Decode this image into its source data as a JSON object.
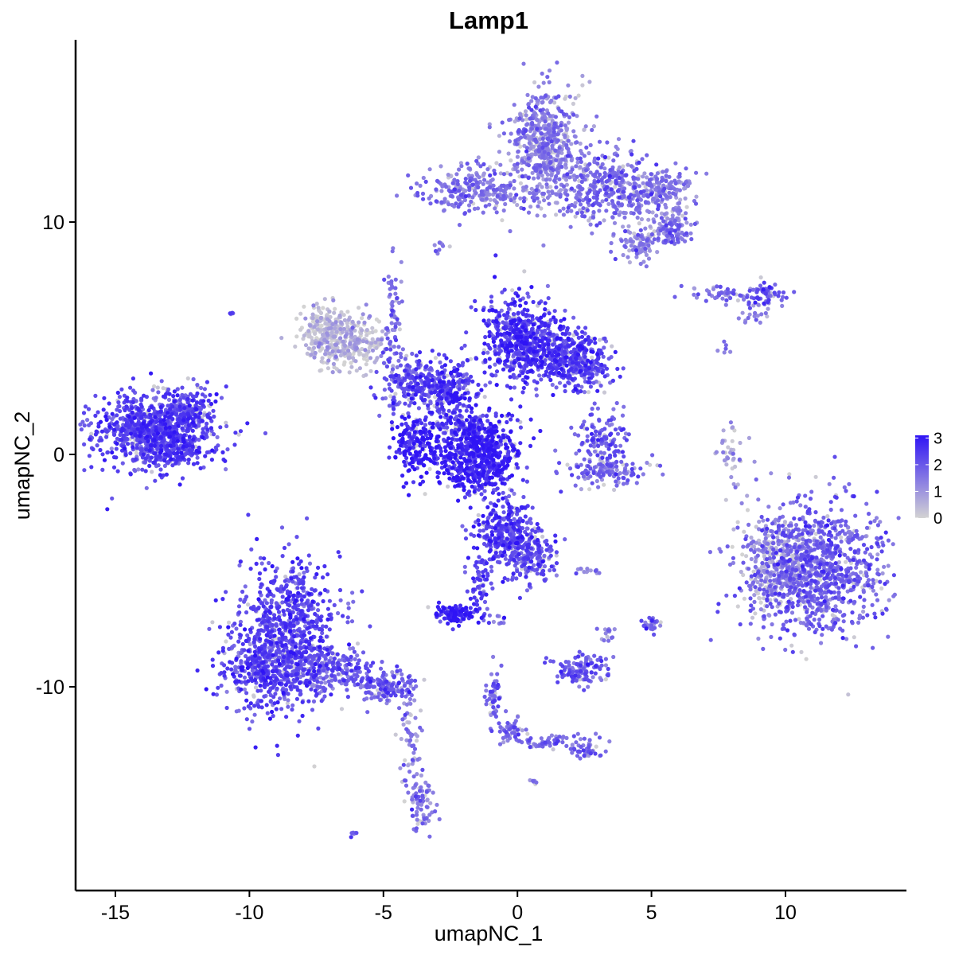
{
  "chart_data": {
    "type": "scatter",
    "title": "Lamp1",
    "xlabel": "umapNC_1",
    "ylabel": "umapNC_2",
    "xlim": [
      -16.5,
      14.5
    ],
    "ylim": [
      -18.5,
      17.6
    ],
    "x_ticks": [
      -15,
      -10,
      -5,
      0,
      5,
      10
    ],
    "x_tick_labels": [
      "-15",
      "-10",
      "-5",
      "0",
      "5",
      "10"
    ],
    "y_ticks": [
      -10,
      0,
      10
    ],
    "y_tick_labels": [
      "-10",
      "0",
      "10"
    ],
    "grid": false,
    "color_scale": {
      "low": "#d3d3d3",
      "high": "#2f14f5",
      "min": 0,
      "max": 3.1,
      "legend_ticks": [
        0,
        1,
        2,
        3
      ],
      "legend_labels": [
        "0",
        "1",
        "2",
        "3"
      ],
      "legend_position": "right"
    },
    "clusters": [
      {
        "cx": -13.6,
        "cy": 1.0,
        "sx": 1.1,
        "sy": 0.8,
        "n": 900,
        "expr": 2.3
      },
      {
        "cx": -12.3,
        "cy": 1.9,
        "sx": 0.5,
        "sy": 0.5,
        "n": 120,
        "expr": 2.2
      },
      {
        "cx": -12.5,
        "cy": 0.2,
        "sx": 0.5,
        "sy": 0.3,
        "n": 80,
        "expr": 2.4
      },
      {
        "cx": -10.6,
        "cy": 6.1,
        "sx": 0.06,
        "sy": 0.06,
        "n": 4,
        "expr": 2.0
      },
      {
        "cx": -8.6,
        "cy": -7.8,
        "sx": 1.0,
        "sy": 1.6,
        "n": 800,
        "expr": 2.2
      },
      {
        "cx": -9.4,
        "cy": -9.2,
        "sx": 0.8,
        "sy": 0.7,
        "n": 300,
        "expr": 2.2
      },
      {
        "cx": -6.8,
        "cy": -9.3,
        "sx": 0.9,
        "sy": 0.5,
        "n": 200,
        "expr": 1.9
      },
      {
        "cx": -4.9,
        "cy": -10.0,
        "sx": 0.6,
        "sy": 0.35,
        "n": 120,
        "expr": 1.9
      },
      {
        "cx": -4.0,
        "cy": -12.2,
        "sx": 0.2,
        "sy": 1.0,
        "n": 60,
        "expr": 1.4
      },
      {
        "cx": -3.6,
        "cy": -14.9,
        "sx": 0.25,
        "sy": 0.6,
        "n": 80,
        "expr": 1.5
      },
      {
        "cx": -6.1,
        "cy": -16.3,
        "sx": 0.1,
        "sy": 0.06,
        "n": 6,
        "expr": 2.0
      },
      {
        "cx": -1.5,
        "cy": 0.1,
        "sx": 0.8,
        "sy": 0.9,
        "n": 700,
        "expr": 2.7
      },
      {
        "cx": -3.8,
        "cy": 0.4,
        "sx": 0.5,
        "sy": 0.7,
        "n": 200,
        "expr": 2.8
      },
      {
        "cx": -2.7,
        "cy": 3.0,
        "sx": 0.6,
        "sy": 0.6,
        "n": 250,
        "expr": 2.3
      },
      {
        "cx": -4.2,
        "cy": 3.2,
        "sx": 0.5,
        "sy": 0.6,
        "n": 150,
        "expr": 2.1
      },
      {
        "cx": -6.4,
        "cy": 4.9,
        "sx": 0.8,
        "sy": 0.6,
        "n": 350,
        "expr": 0.5
      },
      {
        "cx": -7.3,
        "cy": 5.6,
        "sx": 0.3,
        "sy": 0.4,
        "n": 80,
        "expr": 0.3
      },
      {
        "cx": -4.6,
        "cy": 6.0,
        "sx": 0.15,
        "sy": 1.0,
        "n": 60,
        "expr": 1.6
      },
      {
        "cx": -2.0,
        "cy": 1.2,
        "sx": 0.5,
        "sy": 0.2,
        "n": 60,
        "expr": 2.0
      },
      {
        "cx": 0.0,
        "cy": 5.1,
        "sx": 0.7,
        "sy": 0.9,
        "n": 450,
        "expr": 2.5
      },
      {
        "cx": 1.5,
        "cy": 4.3,
        "sx": 0.9,
        "sy": 0.6,
        "n": 350,
        "expr": 2.4
      },
      {
        "cx": 2.4,
        "cy": 3.7,
        "sx": 0.6,
        "sy": 0.5,
        "n": 150,
        "expr": 2.2
      },
      {
        "cx": -2.4,
        "cy": 2.5,
        "sx": 0.15,
        "sy": 0.1,
        "n": 25,
        "expr": 3.1
      },
      {
        "cx": 3.2,
        "cy": 0.6,
        "sx": 0.45,
        "sy": 0.6,
        "n": 130,
        "expr": 1.9
      },
      {
        "cx": 3.3,
        "cy": -0.7,
        "sx": 0.8,
        "sy": 0.3,
        "n": 120,
        "expr": 1.7
      },
      {
        "cx": 1.0,
        "cy": 13.2,
        "sx": 0.7,
        "sy": 1.2,
        "n": 600,
        "expr": 1.3
      },
      {
        "cx": 3.5,
        "cy": 11.5,
        "sx": 0.9,
        "sy": 0.8,
        "n": 350,
        "expr": 1.6
      },
      {
        "cx": 5.4,
        "cy": 11.4,
        "sx": 0.6,
        "sy": 0.5,
        "n": 150,
        "expr": 1.4
      },
      {
        "cx": 5.7,
        "cy": 9.7,
        "sx": 0.4,
        "sy": 0.4,
        "n": 120,
        "expr": 1.5
      },
      {
        "cx": 4.6,
        "cy": 9.0,
        "sx": 0.4,
        "sy": 0.4,
        "n": 80,
        "expr": 1.3
      },
      {
        "cx": -1.9,
        "cy": 11.4,
        "sx": 0.9,
        "sy": 0.5,
        "n": 180,
        "expr": 1.6
      },
      {
        "cx": -0.5,
        "cy": 11.2,
        "sx": 0.8,
        "sy": 0.25,
        "n": 80,
        "expr": 1.3
      },
      {
        "cx": -2.9,
        "cy": 8.9,
        "sx": 0.15,
        "sy": 0.15,
        "n": 10,
        "expr": 1.5
      },
      {
        "cx": 7.8,
        "cy": 6.9,
        "sx": 0.8,
        "sy": 0.2,
        "n": 50,
        "expr": 1.6
      },
      {
        "cx": 9.3,
        "cy": 6.9,
        "sx": 0.4,
        "sy": 0.3,
        "n": 60,
        "expr": 2.0
      },
      {
        "cx": 8.8,
        "cy": 6.0,
        "sx": 0.25,
        "sy": 0.3,
        "n": 20,
        "expr": 1.4
      },
      {
        "cx": 7.8,
        "cy": 4.7,
        "sx": 0.12,
        "sy": 0.2,
        "n": 6,
        "expr": 1.3
      },
      {
        "cx": 8.0,
        "cy": 0.1,
        "sx": 0.25,
        "sy": 1.0,
        "n": 40,
        "expr": 0.9
      },
      {
        "cx": 11.0,
        "cy": -4.9,
        "sx": 1.3,
        "sy": 1.5,
        "n": 1100,
        "expr": 1.8
      },
      {
        "cx": 9.6,
        "cy": -4.9,
        "sx": 0.6,
        "sy": 0.9,
        "n": 200,
        "expr": 0.6
      },
      {
        "cx": -0.4,
        "cy": -3.5,
        "sx": 0.6,
        "sy": 0.8,
        "n": 350,
        "expr": 2.3
      },
      {
        "cx": 0.6,
        "cy": -4.5,
        "sx": 0.5,
        "sy": 0.6,
        "n": 150,
        "expr": 2.0
      },
      {
        "cx": -1.4,
        "cy": -5.7,
        "sx": 0.2,
        "sy": 0.6,
        "n": 60,
        "expr": 2.2
      },
      {
        "cx": -2.3,
        "cy": -6.9,
        "sx": 0.4,
        "sy": 0.2,
        "n": 100,
        "expr": 2.8
      },
      {
        "cx": -0.8,
        "cy": -7.1,
        "sx": 0.25,
        "sy": 0.1,
        "n": 10,
        "expr": 1.6
      },
      {
        "cx": 2.7,
        "cy": -5.0,
        "sx": 0.3,
        "sy": 0.1,
        "n": 12,
        "expr": 1.4
      },
      {
        "cx": 3.3,
        "cy": -7.6,
        "sx": 0.2,
        "sy": 0.3,
        "n": 15,
        "expr": 1.4
      },
      {
        "cx": 5.0,
        "cy": -7.3,
        "sx": 0.2,
        "sy": 0.2,
        "n": 30,
        "expr": 1.8
      },
      {
        "cx": 2.4,
        "cy": -9.3,
        "sx": 0.5,
        "sy": 0.35,
        "n": 120,
        "expr": 1.9
      },
      {
        "cx": -0.9,
        "cy": -10.3,
        "sx": 0.15,
        "sy": 0.6,
        "n": 50,
        "expr": 1.7
      },
      {
        "cx": -0.3,
        "cy": -11.9,
        "sx": 0.3,
        "sy": 0.3,
        "n": 50,
        "expr": 1.6
      },
      {
        "cx": 1.2,
        "cy": -12.4,
        "sx": 0.8,
        "sy": 0.2,
        "n": 60,
        "expr": 1.7
      },
      {
        "cx": 2.5,
        "cy": -12.7,
        "sx": 0.3,
        "sy": 0.2,
        "n": 40,
        "expr": 1.7
      },
      {
        "cx": 0.6,
        "cy": -14.1,
        "sx": 0.08,
        "sy": 0.06,
        "n": 6,
        "expr": 1.5
      }
    ]
  }
}
